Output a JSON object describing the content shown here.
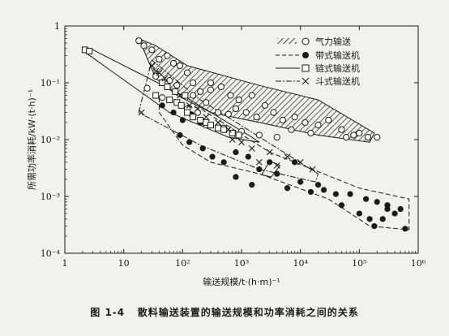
{
  "chart_data": {
    "type": "scatter",
    "x_scale": "log",
    "y_scale": "log",
    "xlim": [
      1,
      1000000
    ],
    "ylim": [
      0.0001,
      1
    ],
    "x_ticks": [
      {
        "value": 1,
        "label": "1"
      },
      {
        "value": 10,
        "label": "10"
      },
      {
        "value": 100,
        "label": "10²"
      },
      {
        "value": 1000,
        "label": "10³"
      },
      {
        "value": 10000,
        "label": "10⁴"
      },
      {
        "value": 100000,
        "label": "10⁵"
      },
      {
        "value": 1000000,
        "label": "10⁶"
      }
    ],
    "y_ticks": [
      {
        "value": 1,
        "label": "1"
      },
      {
        "value": 0.1,
        "label": "10⁻¹"
      },
      {
        "value": 0.01,
        "label": "10⁻²"
      },
      {
        "value": 0.001,
        "label": "10⁻³"
      },
      {
        "value": 0.0001,
        "label": "10⁻⁴"
      }
    ],
    "xlabel": "输送规模/t·(h·m)⁻¹",
    "ylabel": "所需功率消耗/kW·(t·h)⁻¹",
    "legend_position": "top-right",
    "series": [
      {
        "name": "气力输送",
        "marker": "open-circle",
        "points": [
          [
            18,
            0.55
          ],
          [
            22,
            0.45
          ],
          [
            30,
            0.38
          ],
          [
            40,
            0.26
          ],
          [
            55,
            0.3
          ],
          [
            70,
            0.22
          ],
          [
            90,
            0.2
          ],
          [
            120,
            0.15
          ],
          [
            35,
            0.13
          ],
          [
            60,
            0.11
          ],
          [
            25,
            0.08
          ],
          [
            45,
            0.055
          ],
          [
            80,
            0.09
          ],
          [
            150,
            0.1
          ],
          [
            200,
            0.07
          ],
          [
            300,
            0.075
          ],
          [
            450,
            0.085
          ],
          [
            650,
            0.06
          ],
          [
            900,
            0.05
          ],
          [
            120,
            0.035
          ],
          [
            180,
            0.03
          ],
          [
            250,
            0.045
          ],
          [
            400,
            0.03
          ],
          [
            600,
            0.028
          ],
          [
            800,
            0.035
          ],
          [
            1200,
            0.03
          ],
          [
            1800,
            0.025
          ],
          [
            2500,
            0.04
          ],
          [
            3500,
            0.03
          ],
          [
            5000,
            0.022
          ],
          [
            8000,
            0.025
          ],
          [
            12000,
            0.02
          ],
          [
            20000,
            0.018
          ],
          [
            30000,
            0.022
          ],
          [
            50000,
            0.015
          ],
          [
            80000,
            0.012
          ],
          [
            140000,
            0.011
          ],
          [
            250,
            0.018
          ],
          [
            500,
            0.016
          ],
          [
            1000,
            0.014
          ],
          [
            2000,
            0.012
          ],
          [
            4000,
            0.011
          ],
          [
            7000,
            0.015
          ],
          [
            15000,
            0.013
          ],
          [
            60000,
            0.011
          ],
          [
            100000,
            0.013
          ],
          [
            200000,
            0.011
          ],
          [
            300,
            0.1
          ],
          [
            150,
            0.06
          ],
          [
            1500,
            0.06
          ]
        ]
      },
      {
        "name": "带式输送机",
        "marker": "filled-circle",
        "points": [
          [
            45,
            0.04
          ],
          [
            70,
            0.03
          ],
          [
            100,
            0.022
          ],
          [
            140,
            0.028
          ],
          [
            200,
            0.02
          ],
          [
            90,
            0.012
          ],
          [
            130,
            0.009
          ],
          [
            220,
            0.007
          ],
          [
            320,
            0.005
          ],
          [
            500,
            0.004
          ],
          [
            800,
            0.006
          ],
          [
            1300,
            0.005
          ],
          [
            2000,
            0.003
          ],
          [
            3000,
            0.004
          ],
          [
            800,
            0.0022
          ],
          [
            1500,
            0.0016
          ],
          [
            4000,
            0.0025
          ],
          [
            6000,
            0.0014
          ],
          [
            10000,
            0.0018
          ],
          [
            15000,
            0.0012
          ],
          [
            25000,
            0.0013
          ],
          [
            40000,
            0.0011
          ],
          [
            70000,
            0.0011
          ],
          [
            130000,
            0.0009
          ],
          [
            200000,
            0.0008
          ],
          [
            300000,
            0.0007
          ],
          [
            500000,
            0.0006
          ],
          [
            100000,
            0.0005
          ],
          [
            150000,
            0.0004
          ],
          [
            250000,
            0.0004
          ],
          [
            400000,
            0.0005
          ],
          [
            600000,
            0.00027
          ],
          [
            180000,
            0.0003
          ],
          [
            50000,
            0.0007
          ],
          [
            8000,
            0.004
          ],
          [
            20000,
            0.0016
          ],
          [
            300000,
            0.0006
          ]
        ]
      },
      {
        "name": "链式输送机",
        "marker": "open-square",
        "points": [
          [
            2.2,
            0.38
          ],
          [
            2.6,
            0.36
          ],
          [
            45,
            0.1
          ],
          [
            55,
            0.085
          ],
          [
            75,
            0.07
          ],
          [
            35,
            0.06
          ],
          [
            60,
            0.05
          ],
          [
            80,
            0.045
          ],
          [
            95,
            0.04
          ],
          [
            110,
            0.06
          ],
          [
            120,
            0.03
          ],
          [
            150,
            0.025
          ],
          [
            200,
            0.022
          ],
          [
            250,
            0.02
          ],
          [
            300,
            0.018
          ],
          [
            400,
            0.016
          ],
          [
            500,
            0.015
          ],
          [
            700,
            0.013
          ],
          [
            900,
            0.012
          ]
        ]
      },
      {
        "name": "斗式输送机",
        "marker": "x",
        "points": [
          [
            30,
            0.2
          ],
          [
            35,
            0.16
          ],
          [
            40,
            0.15
          ],
          [
            50,
            0.12
          ],
          [
            90,
            0.06
          ],
          [
            130,
            0.04
          ],
          [
            180,
            0.035
          ],
          [
            250,
            0.025
          ],
          [
            400,
            0.02
          ],
          [
            600,
            0.015
          ],
          [
            1000,
            0.009
          ],
          [
            1500,
            0.007
          ],
          [
            3000,
            0.006
          ],
          [
            6000,
            0.005
          ],
          [
            10000,
            0.004
          ],
          [
            16000,
            0.003
          ],
          [
            20,
            0.03
          ],
          [
            700,
            0.01
          ],
          [
            2000,
            0.004
          ],
          [
            4000,
            0.0035
          ]
        ]
      }
    ]
  },
  "legend": [
    {
      "label": "气力输送",
      "style": "hatch-circle"
    },
    {
      "label": "带式输送机",
      "style": "dash-filled-circle"
    },
    {
      "label": "链式输送机",
      "style": "solid-square"
    },
    {
      "label": "斗式输送机",
      "style": "dashdot-x"
    }
  ],
  "caption": {
    "number": "图 1-4",
    "text": "散料输送装置的输送规模和功率消耗之间的关系"
  },
  "colors": {
    "ink": "#1a1a1a",
    "paper": "#f3f1ec",
    "marker_fill": "#ffffff"
  }
}
